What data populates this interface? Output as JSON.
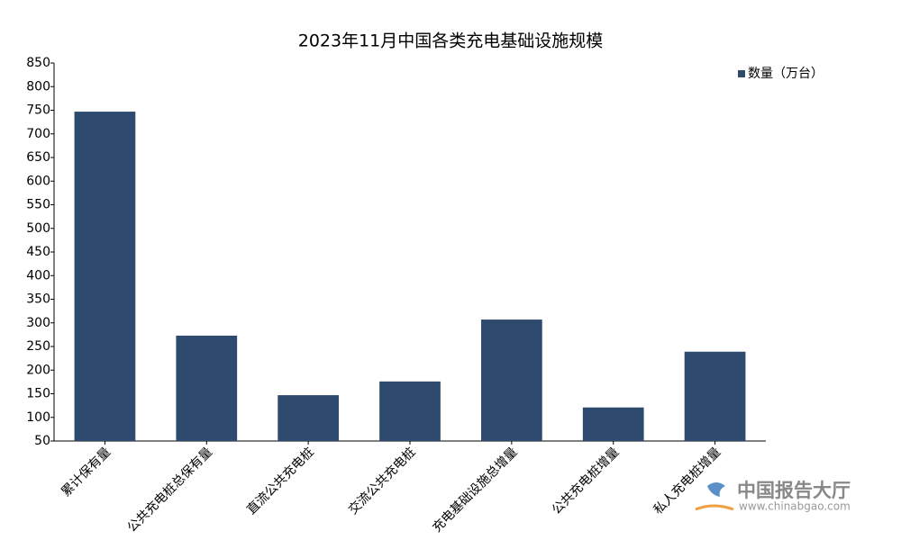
{
  "chart_data": {
    "type": "bar",
    "title": "2023年11月中国各类充电基础设施规模",
    "categories": [
      "累计保有量",
      "公共充电桩总保有量",
      "直流公共充电桩",
      "交流公共充电桩",
      "充电基础设施总增量",
      "公共充电桩增量",
      "私人充电桩增量"
    ],
    "series": [
      {
        "name": "数量（万台）",
        "color": "#2e4a6e",
        "values": [
          747,
          273,
          147,
          176,
          307,
          121,
          239
        ]
      }
    ],
    "ylim": [
      50,
      850
    ],
    "yticks": [
      50,
      100,
      150,
      200,
      250,
      300,
      350,
      400,
      450,
      500,
      550,
      600,
      650,
      700,
      750,
      800,
      850
    ],
    "grid": false,
    "legend": "top-right"
  },
  "watermark": {
    "name": "中国报告大厅",
    "url": "www.chinabgao.com"
  }
}
